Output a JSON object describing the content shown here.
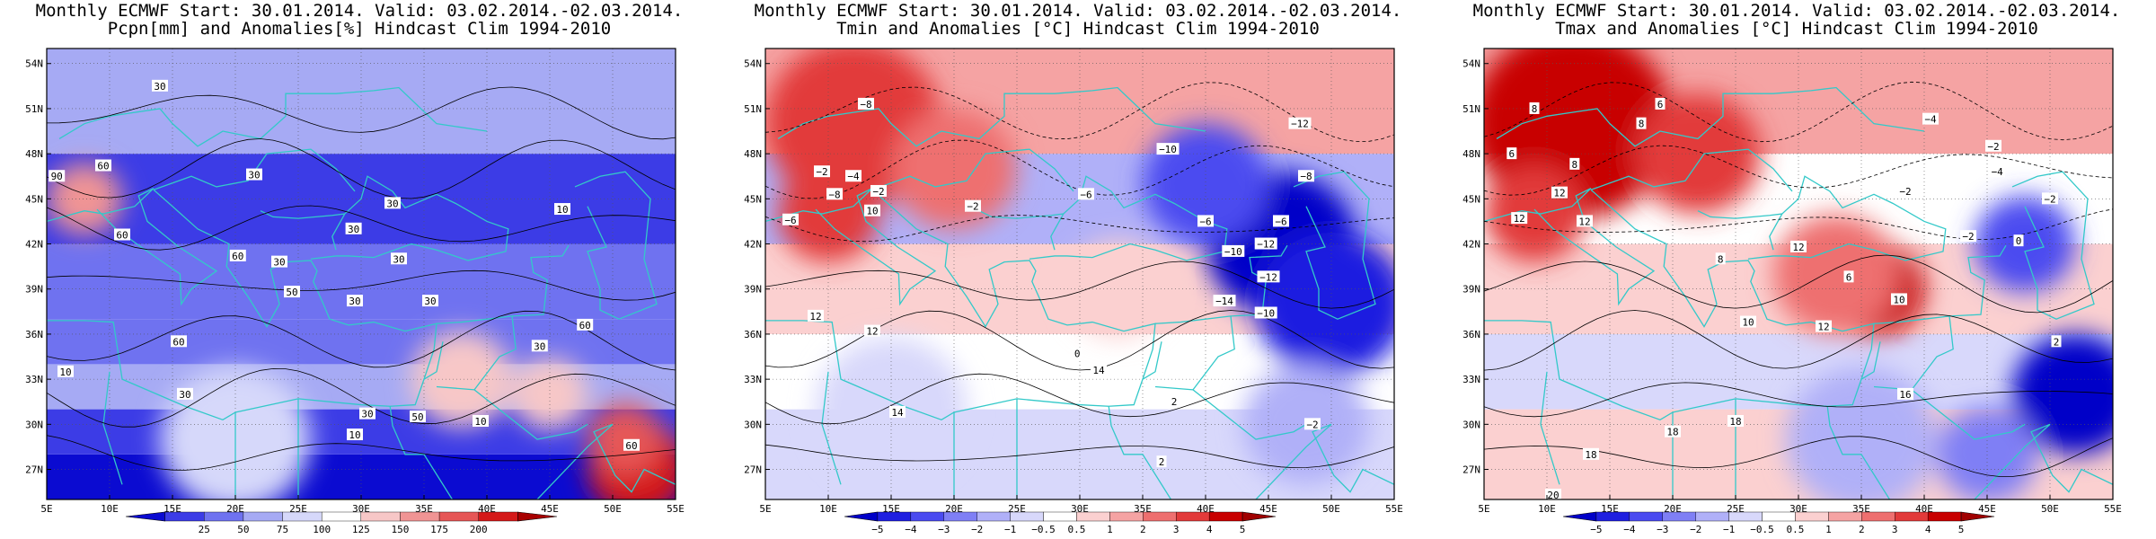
{
  "colors": {
    "land_outline": "#33c9c9",
    "contour": "#000000"
  },
  "chart_data": [
    {
      "type": "heatmap",
      "title_line1": "Monthly ECMWF Start: 30.01.2014. Valid: 03.02.2014.-02.03.2014.",
      "title_line2": "Pcpn[mm] and Anomalies[%] Hindcast Clim 1994-2010",
      "x_ticks": [
        "5E",
        "10E",
        "15E",
        "20E",
        "25E",
        "30E",
        "35E",
        "40E",
        "45E",
        "50E",
        "55E"
      ],
      "y_ticks": [
        "54N",
        "51N",
        "48N",
        "45N",
        "42N",
        "39N",
        "36N",
        "33N",
        "30N",
        "27N"
      ],
      "xlim": [
        5,
        55
      ],
      "ylim": [
        25,
        55
      ],
      "colorbar_labels": [
        "25",
        "50",
        "75",
        "100",
        "125",
        "150",
        "175",
        "200"
      ],
      "colorbar_colors": [
        "#0b0bd1",
        "#3c3ce6",
        "#6f72f0",
        "#a6aaf4",
        "#d6d8fa",
        "#ffffff",
        "#f7c7c7",
        "#f09494",
        "#e65656",
        "#d41919",
        "#a80000"
      ],
      "contour_labels": [
        {
          "text": "30",
          "x": 14,
          "y": 52.5
        },
        {
          "text": "90",
          "x": 5.8,
          "y": 46.5
        },
        {
          "text": "60",
          "x": 9.5,
          "y": 47.2
        },
        {
          "text": "30",
          "x": 21.5,
          "y": 46.6
        },
        {
          "text": "30",
          "x": 32.5,
          "y": 44.7
        },
        {
          "text": "30",
          "x": 29.4,
          "y": 43.0
        },
        {
          "text": "30",
          "x": 33.0,
          "y": 41.0
        },
        {
          "text": "10",
          "x": 46.0,
          "y": 44.3
        },
        {
          "text": "60",
          "x": 11.0,
          "y": 42.6
        },
        {
          "text": "30",
          "x": 23.5,
          "y": 40.8
        },
        {
          "text": "60",
          "x": 20.2,
          "y": 41.2
        },
        {
          "text": "50",
          "x": 24.5,
          "y": 38.8
        },
        {
          "text": "30",
          "x": 29.5,
          "y": 38.2
        },
        {
          "text": "30",
          "x": 35.5,
          "y": 38.2
        },
        {
          "text": "60",
          "x": 15.5,
          "y": 35.5
        },
        {
          "text": "30",
          "x": 44.2,
          "y": 35.2
        },
        {
          "text": "60",
          "x": 47.8,
          "y": 36.6
        },
        {
          "text": "10",
          "x": 6.5,
          "y": 33.5
        },
        {
          "text": "30",
          "x": 16.0,
          "y": 32.0
        },
        {
          "text": "10",
          "x": 29.5,
          "y": 29.3
        },
        {
          "text": "30",
          "x": 30.5,
          "y": 30.7
        },
        {
          "text": "50",
          "x": 34.5,
          "y": 30.5
        },
        {
          "text": "10",
          "x": 39.5,
          "y": 30.2
        },
        {
          "text": "60",
          "x": 51.5,
          "y": 28.6
        }
      ]
    },
    {
      "type": "heatmap",
      "title_line1": "Monthly ECMWF Start: 30.01.2014. Valid: 03.02.2014.-02.03.2014.",
      "title_line2": "Tmin and Anomalies [°C] Hindcast Clim 1994-2010",
      "x_ticks": [
        "5E",
        "10E",
        "15E",
        "20E",
        "25E",
        "30E",
        "35E",
        "40E",
        "45E",
        "50E",
        "55E"
      ],
      "y_ticks": [
        "54N",
        "51N",
        "48N",
        "45N",
        "42N",
        "39N",
        "36N",
        "33N",
        "30N",
        "27N"
      ],
      "xlim": [
        5,
        55
      ],
      "ylim": [
        25,
        55
      ],
      "colorbar_labels": [
        "−5",
        "−4",
        "−3",
        "−2",
        "−1",
        "−0.5",
        "0.5",
        "1",
        "2",
        "3",
        "4",
        "5"
      ],
      "colorbar_colors": [
        "#0000c8",
        "#1f1fe0",
        "#4b4bf0",
        "#7f7ff5",
        "#b0b0f8",
        "#d8d8fb",
        "#ffffff",
        "#fbd0d0",
        "#f5a3a3",
        "#ee6f6f",
        "#e23a3a",
        "#c80000",
        "#a00000"
      ],
      "contour_labels": [
        {
          "text": "−8",
          "x": 13.0,
          "y": 51.3
        },
        {
          "text": "−2",
          "x": 9.5,
          "y": 46.8
        },
        {
          "text": "−4",
          "x": 12.0,
          "y": 46.5
        },
        {
          "text": "−8",
          "x": 10.5,
          "y": 45.3
        },
        {
          "text": "−2",
          "x": 14.0,
          "y": 45.5
        },
        {
          "text": "−6",
          "x": 7.0,
          "y": 43.6
        },
        {
          "text": "10",
          "x": 13.5,
          "y": 44.2
        },
        {
          "text": "−2",
          "x": 21.5,
          "y": 44.5
        },
        {
          "text": "−6",
          "x": 30.5,
          "y": 45.3
        },
        {
          "text": "−10",
          "x": 37.0,
          "y": 48.3
        },
        {
          "text": "−12",
          "x": 47.5,
          "y": 50.0
        },
        {
          "text": "−8",
          "x": 48.0,
          "y": 46.5
        },
        {
          "text": "−6",
          "x": 40.0,
          "y": 43.5
        },
        {
          "text": "−10",
          "x": 42.2,
          "y": 41.5
        },
        {
          "text": "−12",
          "x": 44.8,
          "y": 42.0
        },
        {
          "text": "−6",
          "x": 46.0,
          "y": 43.5
        },
        {
          "text": "−12",
          "x": 45.0,
          "y": 39.8
        },
        {
          "text": "−14",
          "x": 41.5,
          "y": 38.2
        },
        {
          "text": "−10",
          "x": 44.8,
          "y": 37.4
        },
        {
          "text": "12",
          "x": 9.0,
          "y": 37.2
        },
        {
          "text": "12",
          "x": 13.5,
          "y": 36.2
        },
        {
          "text": "14",
          "x": 31.5,
          "y": 33.6
        },
        {
          "text": "0",
          "x": 29.8,
          "y": 34.7
        },
        {
          "text": "14",
          "x": 15.5,
          "y": 30.8
        },
        {
          "text": "−2",
          "x": 48.5,
          "y": 30.0
        },
        {
          "text": "2",
          "x": 37.5,
          "y": 31.5
        },
        {
          "text": "2",
          "x": 36.5,
          "y": 27.5
        }
      ]
    },
    {
      "type": "heatmap",
      "title_line1": "Monthly ECMWF Start: 30.01.2014. Valid: 03.02.2014.-02.03.2014.",
      "title_line2": "Tmax and Anomalies [°C] Hindcast Clim 1994-2010",
      "x_ticks": [
        "5E",
        "10E",
        "15E",
        "20E",
        "25E",
        "30E",
        "35E",
        "40E",
        "45E",
        "50E",
        "55E"
      ],
      "y_ticks": [
        "54N",
        "51N",
        "48N",
        "45N",
        "42N",
        "39N",
        "36N",
        "33N",
        "30N",
        "27N"
      ],
      "xlim": [
        5,
        55
      ],
      "ylim": [
        25,
        55
      ],
      "colorbar_labels": [
        "−5",
        "−4",
        "−3",
        "−2",
        "−1",
        "−0.5",
        "0.5",
        "1",
        "2",
        "3",
        "4",
        "5"
      ],
      "colorbar_colors": [
        "#0000c8",
        "#1f1fe0",
        "#4b4bf0",
        "#7f7ff5",
        "#b0b0f8",
        "#d8d8fb",
        "#ffffff",
        "#fbd0d0",
        "#f5a3a3",
        "#ee6f6f",
        "#e23a3a",
        "#c80000",
        "#a00000"
      ],
      "contour_labels": [
        {
          "text": "8",
          "x": 9.0,
          "y": 51.0
        },
        {
          "text": "6",
          "x": 19.0,
          "y": 51.3
        },
        {
          "text": "8",
          "x": 17.5,
          "y": 50.0
        },
        {
          "text": "6",
          "x": 7.2,
          "y": 48.0
        },
        {
          "text": "8",
          "x": 12.2,
          "y": 47.3
        },
        {
          "text": "12",
          "x": 11.0,
          "y": 45.4
        },
        {
          "text": "12",
          "x": 13.0,
          "y": 43.5
        },
        {
          "text": "12",
          "x": 7.8,
          "y": 43.7
        },
        {
          "text": "−4",
          "x": 40.5,
          "y": 50.3
        },
        {
          "text": "−2",
          "x": 45.5,
          "y": 48.5
        },
        {
          "text": "−4",
          "x": 45.8,
          "y": 46.8
        },
        {
          "text": "−2",
          "x": 38.5,
          "y": 45.5
        },
        {
          "text": "−2",
          "x": 50.0,
          "y": 45.0
        },
        {
          "text": "−2",
          "x": 43.5,
          "y": 42.5
        },
        {
          "text": "0",
          "x": 47.5,
          "y": 42.2
        },
        {
          "text": "8",
          "x": 23.8,
          "y": 41.0
        },
        {
          "text": "12",
          "x": 30.0,
          "y": 41.8
        },
        {
          "text": "6",
          "x": 34.0,
          "y": 39.8
        },
        {
          "text": "10",
          "x": 38.0,
          "y": 38.3
        },
        {
          "text": "12",
          "x": 32.0,
          "y": 36.5
        },
        {
          "text": "10",
          "x": 26.0,
          "y": 36.8
        },
        {
          "text": "2",
          "x": 50.5,
          "y": 35.5
        },
        {
          "text": "16",
          "x": 38.5,
          "y": 32.0
        },
        {
          "text": "18",
          "x": 25.0,
          "y": 30.2
        },
        {
          "text": "18",
          "x": 20.0,
          "y": 29.5
        },
        {
          "text": "18",
          "x": 13.5,
          "y": 28.0
        },
        {
          "text": "20",
          "x": 10.5,
          "y": 25.3
        }
      ]
    }
  ]
}
